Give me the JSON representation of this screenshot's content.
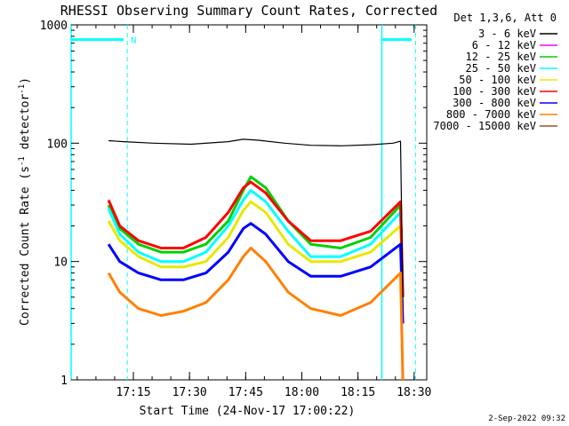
{
  "chart_data": {
    "type": "line",
    "title": "RHESSI Observing Summary Count Rates, Corrected",
    "xlabel": "Start Time (24-Nov-17 17:00:22)",
    "ylabel_main": "Corrected Count Rate (s",
    "ylabel_sup1": "-1",
    "ylabel_mid": " detector",
    "ylabel_sup2": "-1",
    "ylabel_end": ")",
    "y_scale": "log",
    "ylim": [
      1,
      1000
    ],
    "y_ticks": [
      {
        "value": 1,
        "label": "1"
      },
      {
        "value": 10,
        "label": "10"
      },
      {
        "value": 100,
        "label": "100"
      },
      {
        "value": 1000,
        "label": "1000"
      }
    ],
    "x_unit": "minutes after 17:00:22",
    "xlim": [
      -2,
      93
    ],
    "x_ticks": [
      {
        "value": 14.63,
        "label": "17:15"
      },
      {
        "value": 29.63,
        "label": "17:30"
      },
      {
        "value": 44.63,
        "label": "17:45"
      },
      {
        "value": 59.63,
        "label": "18:00"
      },
      {
        "value": 74.63,
        "label": "18:15"
      },
      {
        "value": 89.63,
        "label": "18:30"
      }
    ],
    "legend_title": "Det 1,3,6, Att 0",
    "legend_position": "top-right",
    "series": [
      {
        "name": "3 - 6 keV",
        "color": "#000000",
        "x": [
          8,
          12,
          20,
          30,
          40,
          44,
          48,
          55,
          62,
          70,
          78,
          84,
          86,
          86.6
        ],
        "y": [
          105,
          103,
          100,
          98,
          103,
          108,
          106,
          100,
          96,
          95,
          97,
          100,
          104,
          5
        ]
      },
      {
        "name": "6 - 12 keV",
        "color": "#ff00ff",
        "x": [],
        "y": []
      },
      {
        "name": "12 - 25 keV",
        "color": "#00d000",
        "x": [
          8,
          11,
          16,
          22,
          28,
          34,
          40,
          44,
          46,
          50,
          56,
          62,
          70,
          78,
          86,
          86.6
        ],
        "y": [
          30,
          19,
          14,
          12,
          12,
          14,
          22,
          40,
          52,
          42,
          22,
          14,
          13,
          16,
          30,
          5
        ]
      },
      {
        "name": "25 - 50 keV",
        "color": "#00ffff",
        "x": [
          8,
          11,
          16,
          22,
          28,
          34,
          40,
          44,
          46,
          50,
          56,
          62,
          70,
          78,
          86,
          86.6
        ],
        "y": [
          28,
          17,
          12,
          10,
          10,
          12,
          20,
          33,
          40,
          32,
          18,
          11,
          11,
          14,
          26,
          4
        ]
      },
      {
        "name": "50 - 100 keV",
        "color": "#e8e800",
        "x": [
          8,
          11,
          16,
          22,
          28,
          34,
          40,
          44,
          46,
          50,
          56,
          62,
          70,
          78,
          86,
          86.6
        ],
        "y": [
          22,
          15,
          11,
          9,
          9,
          10,
          16,
          27,
          32,
          26,
          14,
          10,
          10,
          12,
          20,
          4
        ]
      },
      {
        "name": "100 - 300 keV",
        "color": "#ff0000",
        "x": [
          8,
          11,
          16,
          22,
          28,
          34,
          40,
          44,
          46,
          50,
          56,
          62,
          70,
          78,
          86,
          86.6
        ],
        "y": [
          33,
          20,
          15,
          13,
          13,
          16,
          26,
          42,
          47,
          38,
          22,
          15,
          15,
          18,
          32,
          5
        ]
      },
      {
        "name": "300 - 800 keV",
        "color": "#0000ff",
        "x": [
          8,
          11,
          16,
          22,
          28,
          34,
          40,
          44,
          46,
          50,
          56,
          62,
          70,
          78,
          86,
          86.6
        ],
        "y": [
          14,
          10,
          8,
          7,
          7,
          8,
          12,
          19,
          21,
          17,
          10,
          7.5,
          7.5,
          9,
          14,
          3
        ]
      },
      {
        "name": "800 - 7000 keV",
        "color": "#ff8000",
        "x": [
          8,
          11,
          16,
          22,
          28,
          34,
          40,
          44,
          46,
          50,
          56,
          62,
          70,
          78,
          86,
          86.6
        ],
        "y": [
          8,
          5.5,
          4,
          3.5,
          3.8,
          4.5,
          7,
          11,
          13,
          10,
          5.5,
          4,
          3.5,
          4.5,
          8,
          1
        ]
      },
      {
        "name": "7000 - 15000 keV",
        "color": "#a0521e",
        "x": [],
        "y": []
      }
    ],
    "annotations": [
      {
        "type": "v-solid",
        "x": -2,
        "color": "#00ffff"
      },
      {
        "type": "v-dashed",
        "x": 13,
        "color": "#00ffff"
      },
      {
        "type": "v-solid",
        "x": 81,
        "color": "#00ffff"
      },
      {
        "type": "v-dashed",
        "x": 90,
        "color": "#00ffff"
      },
      {
        "type": "bar",
        "x0": -2,
        "x1": 12,
        "y": 750,
        "color": "#00ffff"
      },
      {
        "type": "bar",
        "x0": 81,
        "x1": 89,
        "y": 750,
        "color": "#00ffff"
      },
      {
        "type": "text",
        "x": 14,
        "y": 750,
        "text": "N",
        "color": "#00ffff"
      }
    ],
    "timestamp": "2-Sep-2022 09:32"
  }
}
